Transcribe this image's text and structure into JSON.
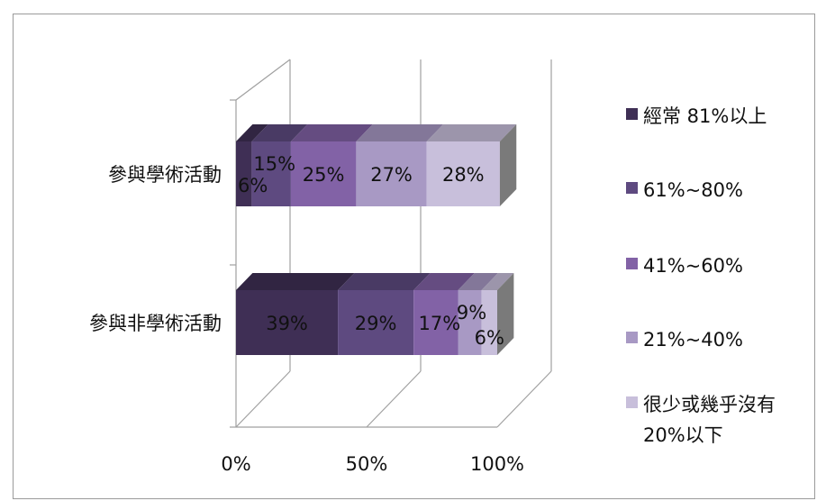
{
  "chart_data": {
    "type": "bar",
    "orientation": "horizontal",
    "stacked": "100%",
    "three_d": true,
    "categories": [
      "參與非學術活動",
      "參與學術活動"
    ],
    "series": [
      {
        "name": "經常 81%以上",
        "values": [
          39,
          6
        ],
        "labels": [
          "39%",
          "6%"
        ],
        "color": "#3f2f55"
      },
      {
        "name": "61%~80%",
        "values": [
          29,
          15
        ],
        "labels": [
          "29%",
          "15%"
        ],
        "color": "#5e4a80"
      },
      {
        "name": "41%~60%",
        "values": [
          17,
          25
        ],
        "labels": [
          "17%",
          "25%"
        ],
        "color": "#8262a6"
      },
      {
        "name": "21%~40%",
        "values": [
          9,
          27
        ],
        "labels": [
          "9%",
          "27%"
        ],
        "color": "#a899c4"
      },
      {
        "name": "很少或幾乎沒有\n20%以下",
        "values": [
          6,
          28
        ],
        "labels": [
          "6%",
          "28%"
        ],
        "color": "#c8bfdb"
      }
    ],
    "x_ticks": [
      "0%",
      "50%",
      "100%"
    ],
    "xlim": [
      0,
      100
    ],
    "legend_position": "right",
    "grid": true
  }
}
